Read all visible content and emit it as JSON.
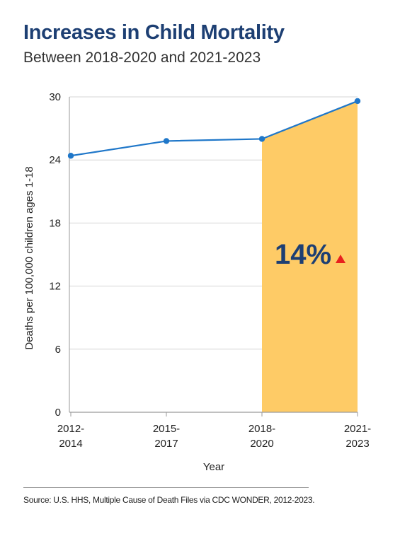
{
  "header": {
    "title": "Increases in Child Mortality",
    "subtitle": "Between 2018-2020 and 2021-2023"
  },
  "footer": {
    "source": "Source: U.S. HHS, Multiple Cause of Death Files via CDC WONDER, 2012-2023."
  },
  "colors": {
    "line": "#1f77c9",
    "highlight": "#fecb66",
    "grid": "#d4d4d4",
    "axis": "#9a9a9a",
    "callout_text": "#1d3f73",
    "callout_arrow": "#e8201e"
  },
  "chart_data": {
    "type": "line",
    "xlabel": "Year",
    "ylabel": "Deaths per 100,000 children ages 1-18",
    "ylim": [
      0,
      30
    ],
    "yticks": [
      0,
      6,
      12,
      18,
      24,
      30
    ],
    "categories": [
      [
        "2012-",
        "2014"
      ],
      [
        "2015-",
        "2017"
      ],
      [
        "2018-",
        "2020"
      ],
      [
        "2021-",
        "2023"
      ]
    ],
    "series": [
      {
        "values": [
          24.4,
          25.8,
          26.0,
          29.6
        ]
      }
    ],
    "highlight": {
      "from_category": 2,
      "to_category": 3,
      "label": "14%",
      "icon": "up-triangle-icon"
    },
    "grid": true
  }
}
